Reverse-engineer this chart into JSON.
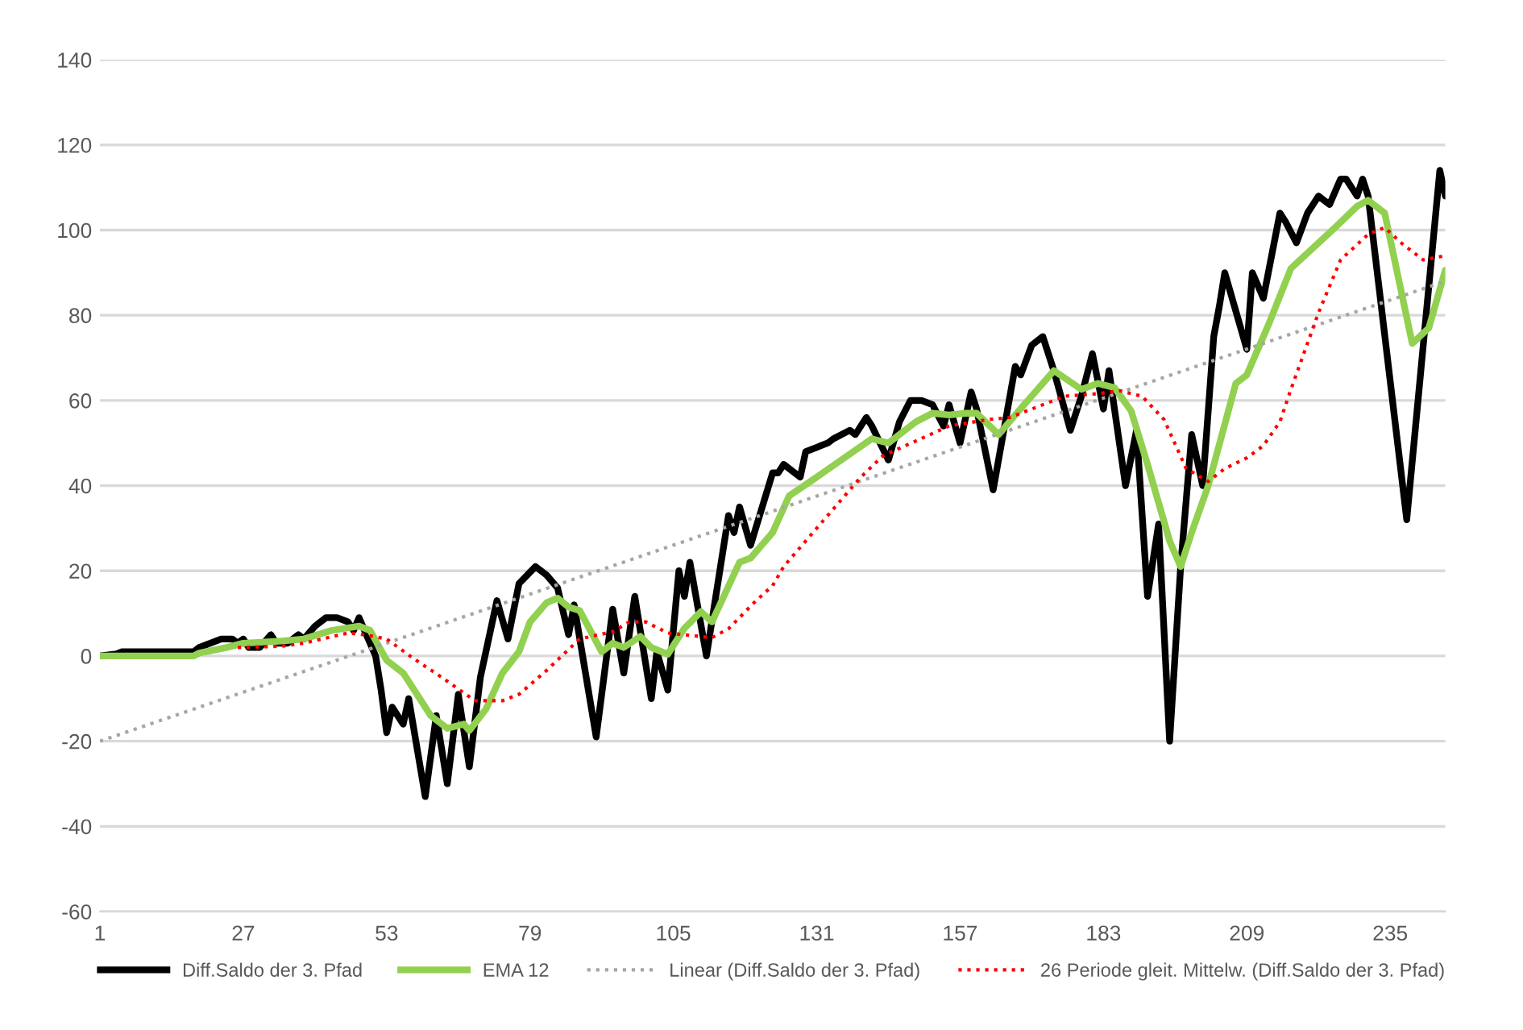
{
  "chart_data": {
    "type": "line",
    "xlim": [
      1,
      245
    ],
    "xticks": [
      1,
      27,
      53,
      79,
      105,
      131,
      157,
      183,
      209,
      235
    ],
    "ylim": [
      -60,
      140
    ],
    "yticks": [
      -60,
      -40,
      -20,
      0,
      20,
      40,
      60,
      80,
      100,
      120,
      140
    ],
    "grid": "y",
    "legend": "bottom",
    "marker": "none",
    "series": [
      {
        "name": "Diff.Saldo der 3. Pfad",
        "color": "#000000",
        "line_style": "solid",
        "x": [
          1,
          4,
          5,
          18,
          19,
          21,
          23,
          25,
          26,
          27,
          28,
          30,
          32,
          33,
          35,
          37,
          38,
          40,
          42,
          44,
          46,
          47,
          48,
          49,
          51,
          52,
          53,
          54,
          56,
          57,
          60,
          62,
          64,
          66,
          68,
          70,
          73,
          75,
          77,
          80,
          82,
          84,
          86,
          87,
          91,
          94,
          96,
          98,
          101,
          102,
          104,
          106,
          107,
          108,
          111,
          115,
          116,
          117,
          119,
          123,
          124,
          125,
          128,
          129,
          131,
          133,
          134,
          137,
          138,
          140,
          141,
          144,
          146,
          148,
          150,
          152,
          154,
          155,
          157,
          159,
          160,
          163,
          167,
          168,
          170,
          172,
          174,
          177,
          179,
          181,
          183,
          184,
          187,
          189,
          191,
          193,
          195,
          197,
          199,
          201,
          203,
          204,
          205,
          209,
          210,
          212,
          215,
          216,
          218,
          220,
          222,
          224,
          226,
          227,
          229,
          230,
          231,
          238,
          244,
          245
        ],
        "values": [
          0,
          0.5,
          1,
          1,
          2,
          3,
          4,
          4,
          3,
          4,
          2,
          2,
          5,
          3,
          3,
          5,
          4,
          7,
          9,
          9,
          8,
          6,
          9,
          6,
          0,
          -8,
          -18,
          -12,
          -16,
          -10,
          -33,
          -14,
          -30,
          -9,
          -26,
          -5,
          13,
          4,
          17,
          21,
          19,
          16,
          5,
          12,
          -19,
          11,
          -4,
          14,
          -10,
          1,
          -8,
          20,
          14,
          22,
          0,
          33,
          29,
          35,
          26,
          43,
          43,
          45,
          42,
          48,
          49,
          50,
          51,
          53,
          52,
          56,
          54,
          46,
          55,
          60,
          60,
          59,
          54,
          59,
          50,
          62,
          58,
          39,
          68,
          66,
          73,
          75,
          67,
          53,
          61,
          71,
          58,
          67,
          40,
          53,
          14,
          31,
          -20,
          21,
          52,
          40,
          75,
          82,
          90,
          72,
          90,
          84,
          104,
          102,
          97,
          104,
          108,
          106,
          112,
          112,
          108,
          112,
          108,
          32,
          114,
          108
        ]
      },
      {
        "name": "EMA 12",
        "color": "#92d050",
        "line_style": "solid",
        "x": [
          1,
          18,
          19,
          24,
          27,
          34,
          38,
          43,
          48,
          50,
          53,
          56,
          59,
          61,
          64,
          67,
          68,
          71,
          74,
          77,
          79,
          82,
          84,
          86,
          88,
          92,
          94,
          96,
          99,
          101,
          104,
          107,
          110,
          112,
          117,
          119,
          123,
          126,
          131,
          141,
          144,
          149,
          152,
          155,
          158,
          160,
          164,
          167,
          174,
          179,
          182,
          185,
          188,
          191,
          195,
          197,
          199,
          202,
          207,
          209,
          213,
          217,
          225,
          229,
          231,
          234,
          239,
          242,
          245
        ],
        "values": [
          0,
          0,
          0.7,
          2,
          3,
          3.5,
          4,
          6,
          7,
          6,
          -1,
          -4,
          -10,
          -14,
          -17,
          -16,
          -17.5,
          -12.5,
          -4,
          1,
          8,
          12.5,
          13.6,
          11.5,
          10.7,
          1,
          3,
          2,
          4.6,
          2,
          0.4,
          6.5,
          10.4,
          8,
          22,
          23,
          29,
          37.6,
          42,
          51,
          50,
          55,
          57,
          56.6,
          57,
          57,
          52,
          56.6,
          67,
          62.6,
          64,
          63,
          57.6,
          45,
          27,
          21,
          29,
          40,
          64,
          66,
          78,
          91,
          100.6,
          105.6,
          107,
          104,
          73.4,
          77,
          90.6
        ]
      },
      {
        "name": "Linear (Diff.Saldo der 3. Pfad)",
        "color": "#a6a6a6",
        "line_style": "dotted",
        "x": [
          1,
          245
        ],
        "values": [
          -20,
          88
        ]
      },
      {
        "name": "26 Periode gleit. Mittelw. (Diff.Saldo der 3. Pfad)",
        "color": "#ff0000",
        "line_style": "dotted",
        "x": [
          26,
          34,
          38,
          46,
          49,
          53,
          58,
          63,
          69,
          74,
          77,
          82,
          88,
          94,
          97,
          100,
          104,
          112,
          115,
          120,
          123,
          125,
          132,
          139,
          143,
          149,
          155,
          162,
          166,
          176,
          182,
          186,
          188,
          190,
          194,
          198,
          202,
          205,
          209,
          212,
          215,
          217,
          222,
          226,
          231,
          234,
          237,
          241,
          245
        ],
        "values": [
          2,
          2.3,
          3,
          5.4,
          5,
          4,
          -0.7,
          -5,
          -10.5,
          -10.5,
          -9,
          -3.4,
          4,
          5.7,
          8,
          8,
          5.4,
          4.3,
          6.4,
          13,
          16.5,
          21,
          31.5,
          42,
          47,
          50.5,
          54,
          55.5,
          56,
          61,
          61.6,
          62.3,
          61.6,
          61,
          55.5,
          44,
          41,
          44,
          46.5,
          49.4,
          55,
          62.6,
          80.6,
          93,
          99,
          100.6,
          97,
          93,
          94
        ]
      }
    ]
  }
}
